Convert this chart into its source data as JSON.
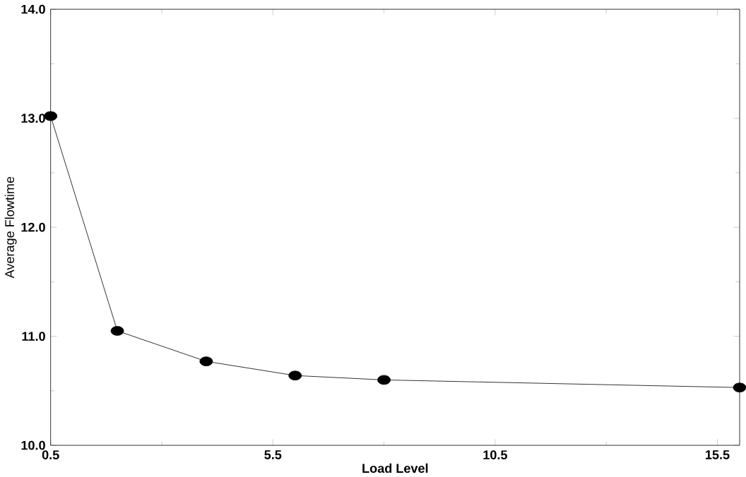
{
  "chart_data": {
    "type": "line",
    "xlabel": "Load Level",
    "ylabel": "Average Flowtime",
    "x": [
      0.5,
      2,
      4,
      6,
      8,
      16
    ],
    "values": [
      13.02,
      11.05,
      10.77,
      10.64,
      10.6,
      10.53
    ],
    "color": "#000000",
    "marker": "circle",
    "line_style": "solid",
    "xlim": [
      0.5,
      16
    ],
    "xticks": [
      0.5,
      5.5,
      10.5,
      15.5
    ],
    "ylim": [
      10,
      14
    ],
    "yticks": [
      {
        "value": 10,
        "label": "10.0"
      },
      {
        "value": 11,
        "label": "11.0"
      },
      {
        "value": 12,
        "label": "12.0"
      },
      {
        "value": 13,
        "label": "13.0"
      },
      {
        "value": 14,
        "label": "14.0"
      }
    ]
  }
}
